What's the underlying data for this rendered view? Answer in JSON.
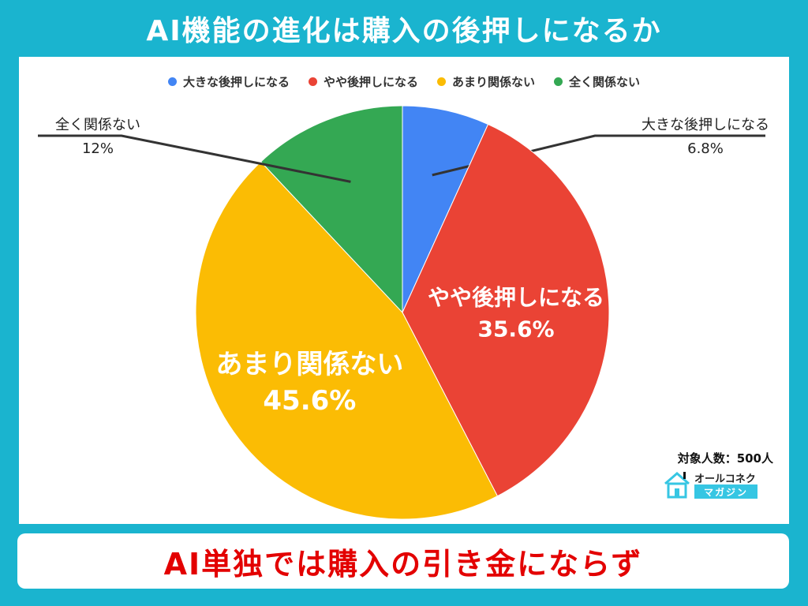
{
  "title": "AI機能の進化は購入の後押しになるか",
  "conclusion": "AI単独では購入の引き金にならず",
  "respondents": "対象人数：500人",
  "logo": {
    "name": "オールコネクト",
    "sub": "マガジン",
    "icon": "house-icon"
  },
  "colors": {
    "background": "#1ab4cf",
    "panel": "#ffffff",
    "conclusion_text": "#e30000"
  },
  "chart_data": {
    "type": "pie",
    "title": "AI機能の進化は購入の後押しになるか",
    "legend_position": "top",
    "start": "top, clockwise",
    "slices": [
      {
        "label": "大きな後押しになる",
        "value": 6.8,
        "display": "6.8%",
        "color": "#4285f4",
        "label_placement": "outside"
      },
      {
        "label": "やや後押しになる",
        "value": 35.6,
        "display": "35.6%",
        "color": "#ea4335",
        "label_placement": "inside"
      },
      {
        "label": "あまり関係ない",
        "value": 45.6,
        "display": "45.6%",
        "color": "#fbbc04",
        "label_placement": "inside"
      },
      {
        "label": "全く関係ない",
        "value": 12,
        "display": "12%",
        "color": "#34a853",
        "label_placement": "outside"
      }
    ]
  }
}
